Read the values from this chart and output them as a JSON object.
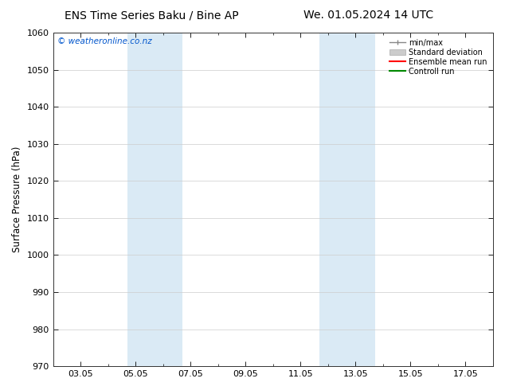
{
  "title_left": "ENS Time Series Baku / Bine AP",
  "title_right": "We. 01.05.2024 14 UTC",
  "ylabel": "Surface Pressure (hPa)",
  "ylim": [
    970,
    1060
  ],
  "yticks": [
    970,
    980,
    990,
    1000,
    1010,
    1020,
    1030,
    1040,
    1050,
    1060
  ],
  "xlim": [
    1,
    17
  ],
  "xtick_labels": [
    "03.05",
    "05.05",
    "07.05",
    "09.05",
    "11.05",
    "13.05",
    "15.05",
    "17.05"
  ],
  "xtick_positions": [
    2,
    4,
    6,
    8,
    10,
    12,
    14,
    16
  ],
  "shaded_regions": [
    {
      "x_start": 3.7,
      "x_end": 5.7,
      "color": "#daeaf5"
    },
    {
      "x_start": 10.7,
      "x_end": 12.7,
      "color": "#daeaf5"
    }
  ],
  "watermark": "© weatheronline.co.nz",
  "watermark_color": "#0055cc",
  "background_color": "#ffffff",
  "plot_bg_color": "#ffffff",
  "legend_items": [
    "min/max",
    "Standard deviation",
    "Ensemble mean run",
    "Controll run"
  ],
  "legend_line_colors": [
    "#888888",
    "#bbbbbb",
    "#ff0000",
    "#008800"
  ],
  "grid_color": "#cccccc",
  "title_fontsize": 10,
  "tick_fontsize": 8,
  "ylabel_fontsize": 8.5
}
